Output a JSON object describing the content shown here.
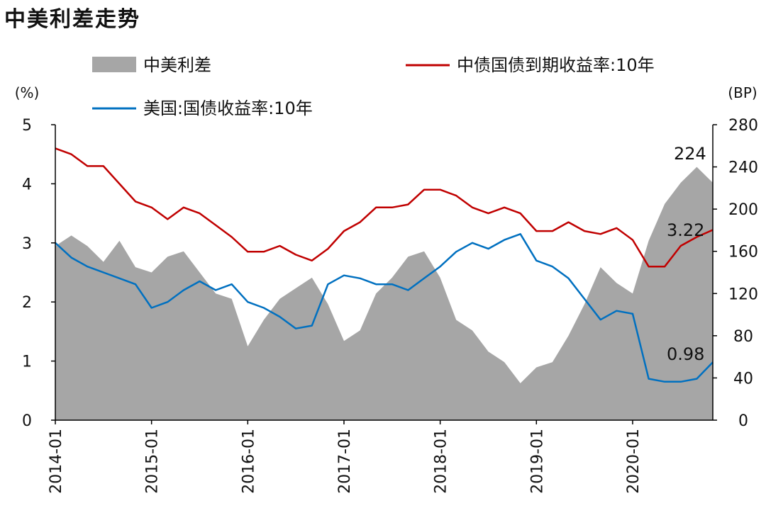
{
  "title": "中美利差走势",
  "colors": {
    "spread": "#a6a6a6",
    "cn": "#c00000",
    "us": "#0070c0",
    "axis": "#000000"
  },
  "chart_data": {
    "type": "line",
    "title": "中美利差走势",
    "x_axis": {
      "range": [
        "2014-01",
        "2020-11"
      ],
      "tick_labels": [
        "2014-01",
        "2015-01",
        "2016-01",
        "2017-01",
        "2018-01",
        "2019-01",
        "2020-01"
      ]
    },
    "y_left": {
      "unit": "(%)",
      "range": [
        0,
        5
      ],
      "ticks": [
        "0",
        "1",
        "2",
        "3",
        "4",
        "5"
      ]
    },
    "y_right": {
      "unit": "(BP)",
      "range": [
        0,
        280
      ],
      "ticks": [
        "0",
        "40",
        "80",
        "120",
        "160",
        "200",
        "240",
        "280"
      ]
    },
    "legend": {
      "position": "top",
      "entries": [
        "中美利差",
        "中债国债到期收益率:10年",
        "美国:国债收益率:10年"
      ]
    },
    "annotations": [
      {
        "text": "224",
        "series": "中美利差"
      },
      {
        "text": "3.22",
        "series": "中债国债到期收益率:10年"
      },
      {
        "text": "0.98",
        "series": "美国:国债收益率:10年"
      }
    ],
    "series": [
      {
        "name": "中美利差",
        "type": "area",
        "axis": "right",
        "x": [
          "2014-01",
          "2014-03",
          "2014-05",
          "2014-07",
          "2014-09",
          "2014-11",
          "2015-01",
          "2015-03",
          "2015-05",
          "2015-07",
          "2015-09",
          "2015-11",
          "2016-01",
          "2016-03",
          "2016-05",
          "2016-07",
          "2016-09",
          "2016-11",
          "2017-01",
          "2017-03",
          "2017-05",
          "2017-07",
          "2017-09",
          "2017-11",
          "2018-01",
          "2018-03",
          "2018-05",
          "2018-07",
          "2018-09",
          "2018-11",
          "2019-01",
          "2019-03",
          "2019-05",
          "2019-07",
          "2019-09",
          "2019-11",
          "2020-01",
          "2020-03",
          "2020-05",
          "2020-07",
          "2020-09",
          "2020-11"
        ],
        "values": [
          165,
          175,
          165,
          150,
          170,
          145,
          140,
          155,
          160,
          140,
          120,
          115,
          70,
          95,
          115,
          125,
          135,
          110,
          75,
          85,
          120,
          135,
          155,
          160,
          135,
          95,
          85,
          65,
          55,
          35,
          50,
          55,
          80,
          110,
          145,
          130,
          120,
          170,
          205,
          225,
          240,
          225
        ]
      },
      {
        "name": "中债国债到期收益率:10年",
        "type": "line",
        "axis": "left",
        "x": [
          "2014-01",
          "2014-03",
          "2014-05",
          "2014-07",
          "2014-09",
          "2014-11",
          "2015-01",
          "2015-03",
          "2015-05",
          "2015-07",
          "2015-09",
          "2015-11",
          "2016-01",
          "2016-03",
          "2016-05",
          "2016-07",
          "2016-09",
          "2016-11",
          "2017-01",
          "2017-03",
          "2017-05",
          "2017-07",
          "2017-09",
          "2017-11",
          "2018-01",
          "2018-03",
          "2018-05",
          "2018-07",
          "2018-09",
          "2018-11",
          "2019-01",
          "2019-03",
          "2019-05",
          "2019-07",
          "2019-09",
          "2019-11",
          "2020-01",
          "2020-03",
          "2020-05",
          "2020-07",
          "2020-09",
          "2020-11"
        ],
        "values": [
          4.6,
          4.5,
          4.3,
          4.3,
          4.0,
          3.7,
          3.6,
          3.4,
          3.6,
          3.5,
          3.3,
          3.1,
          2.85,
          2.85,
          2.95,
          2.8,
          2.7,
          2.9,
          3.2,
          3.35,
          3.6,
          3.6,
          3.65,
          3.9,
          3.9,
          3.8,
          3.6,
          3.5,
          3.6,
          3.5,
          3.2,
          3.2,
          3.35,
          3.2,
          3.15,
          3.25,
          3.05,
          2.6,
          2.6,
          2.95,
          3.1,
          3.22
        ]
      },
      {
        "name": "美国:国债收益率:10年",
        "type": "line",
        "axis": "left",
        "x": [
          "2014-01",
          "2014-03",
          "2014-05",
          "2014-07",
          "2014-09",
          "2014-11",
          "2015-01",
          "2015-03",
          "2015-05",
          "2015-07",
          "2015-09",
          "2015-11",
          "2016-01",
          "2016-03",
          "2016-05",
          "2016-07",
          "2016-09",
          "2016-11",
          "2017-01",
          "2017-03",
          "2017-05",
          "2017-07",
          "2017-09",
          "2017-11",
          "2018-01",
          "2018-03",
          "2018-05",
          "2018-07",
          "2018-09",
          "2018-11",
          "2019-01",
          "2019-03",
          "2019-05",
          "2019-07",
          "2019-09",
          "2019-11",
          "2020-01",
          "2020-03",
          "2020-05",
          "2020-07",
          "2020-09",
          "2020-11"
        ],
        "values": [
          3.0,
          2.75,
          2.6,
          2.5,
          2.4,
          2.3,
          1.9,
          2.0,
          2.2,
          2.35,
          2.2,
          2.3,
          2.0,
          1.9,
          1.75,
          1.55,
          1.6,
          2.3,
          2.45,
          2.4,
          2.3,
          2.3,
          2.2,
          2.4,
          2.6,
          2.85,
          3.0,
          2.9,
          3.05,
          3.15,
          2.7,
          2.6,
          2.4,
          2.05,
          1.7,
          1.85,
          1.8,
          0.7,
          0.65,
          0.65,
          0.7,
          0.98
        ]
      }
    ]
  }
}
